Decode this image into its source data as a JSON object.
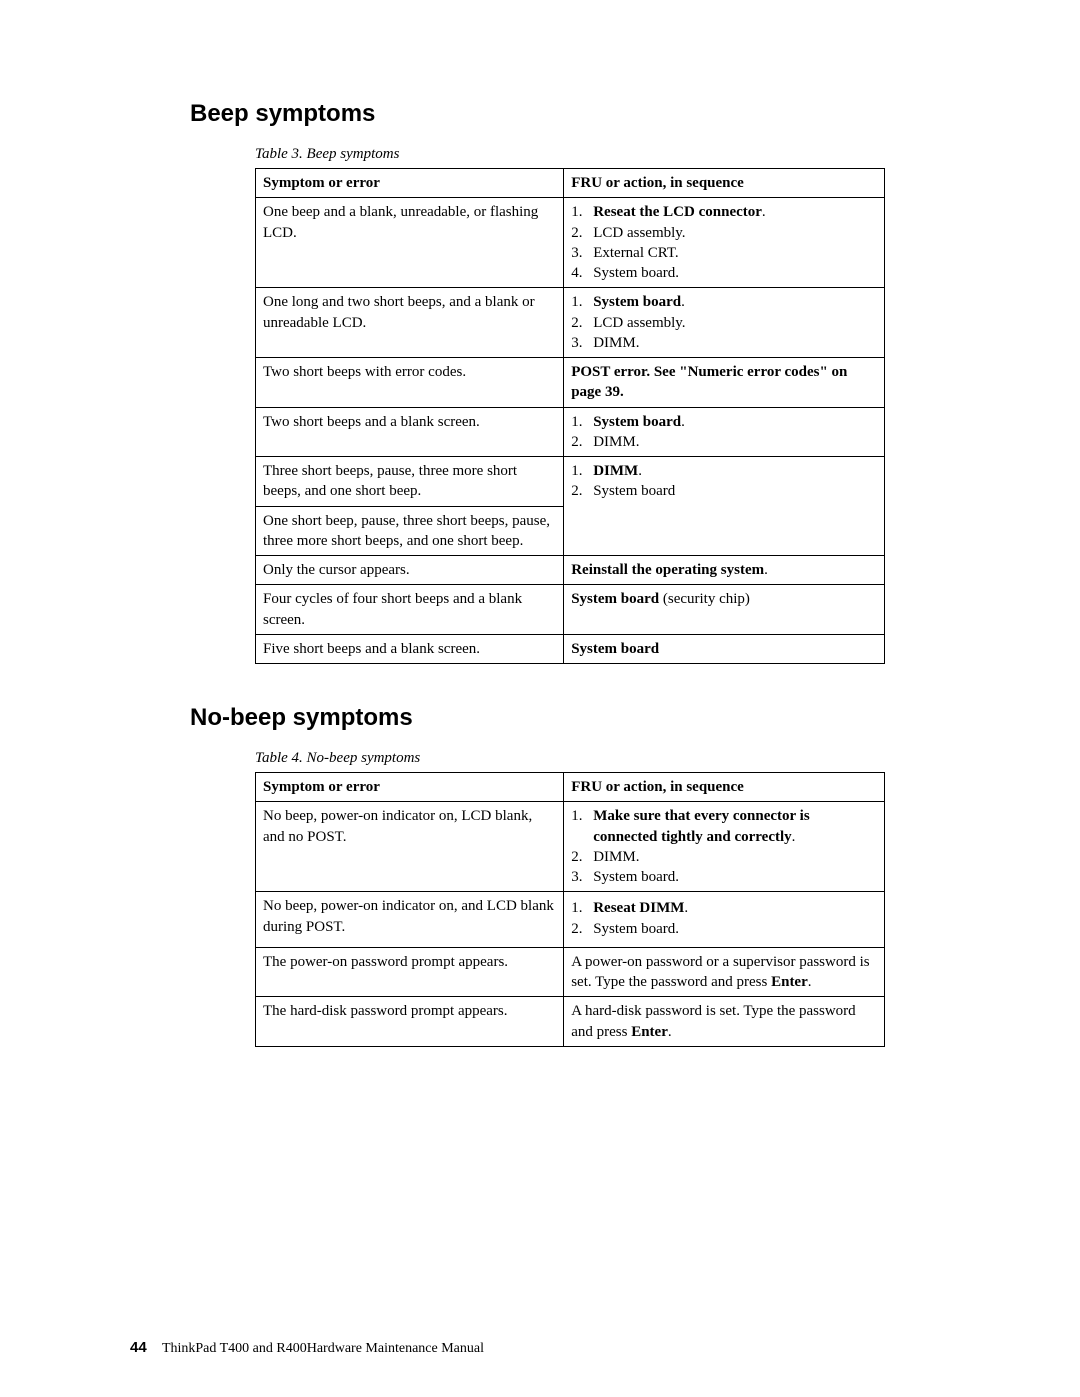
{
  "sections": {
    "beep": {
      "heading": "Beep symptoms",
      "caption": "Table 3. Beep symptoms",
      "headers": {
        "c1": "Symptom or error",
        "c2": "FRU or action, in sequence"
      },
      "rows": {
        "r1": {
          "symptom": "One beep and a blank, unreadable, or flashing LCD.",
          "a1": "Reseat the LCD connector",
          "a1_tail": ".",
          "a2": "LCD assembly.",
          "a3": "External CRT.",
          "a4": "System board."
        },
        "r2": {
          "symptom": "One long and two short beeps, and a blank or unreadable LCD.",
          "a1": "System board",
          "a1_tail": ".",
          "a2": "LCD assembly.",
          "a3": "DIMM."
        },
        "r3": {
          "symptom": "Two short beeps with error codes.",
          "action": "POST error. See \"Numeric error codes\" on page 39."
        },
        "r4": {
          "symptom": "Two short beeps and a blank screen.",
          "a1": "System board",
          "a1_tail": ".",
          "a2": "DIMM."
        },
        "r5": {
          "symptom": "Three short beeps, pause, three more short beeps, and one short beep.",
          "a1": "DIMM",
          "a1_tail": ".",
          "a2": "System board"
        },
        "r6": {
          "symptom": "One short beep, pause, three short beeps, pause, three more short beeps, and one short beep."
        },
        "r7": {
          "symptom": "Only the cursor appears.",
          "action": "Reinstall the operating system",
          "action_tail": "."
        },
        "r8": {
          "symptom": "Four cycles of four short beeps and a blank screen.",
          "action_b": "System board",
          "action_tail": " (security chip)"
        },
        "r9": {
          "symptom": "Five short beeps and a blank screen.",
          "action": "System board"
        }
      }
    },
    "nobeep": {
      "heading": "No-beep symptoms",
      "caption": "Table 4. No-beep symptoms",
      "headers": {
        "c1": "Symptom or error",
        "c2": "FRU or action, in sequence"
      },
      "rows": {
        "r1": {
          "symptom": "No beep, power-on indicator on, LCD blank, and no POST.",
          "a1": "Make sure that every connector is connected tightly and correctly",
          "a1_tail": ".",
          "a2": "DIMM.",
          "a3": "System board."
        },
        "r2": {
          "symptom": "No beep, power-on indicator on, and LCD blank during POST.",
          "a1": "Reseat DIMM",
          "a1_tail": ".",
          "a2": "System board."
        },
        "r3": {
          "symptom": "The power-on password prompt appears.",
          "action_pre": "A power-on password or a supervisor password is set. Type the password and press ",
          "action_b": "Enter",
          "action_tail": "."
        },
        "r4": {
          "symptom": "The hard-disk password prompt appears.",
          "action_pre": "A hard-disk password is set. Type the password and press ",
          "action_b": "Enter",
          "action_tail": "."
        }
      }
    }
  },
  "footer": {
    "page": "44",
    "title": "ThinkPad T400 and R400Hardware Maintenance Manual"
  }
}
